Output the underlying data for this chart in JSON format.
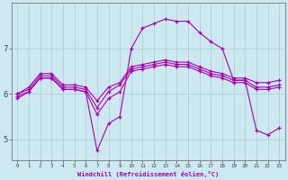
{
  "bg_color": "#cce8f0",
  "grid_color": "#aacccc",
  "line_color": "#aa00aa",
  "x_ticks": [
    0,
    1,
    2,
    3,
    4,
    5,
    6,
    7,
    8,
    9,
    10,
    11,
    12,
    13,
    14,
    15,
    16,
    17,
    18,
    19,
    20,
    21,
    22,
    23
  ],
  "ylim": [
    4.55,
    8.0
  ],
  "yticks": [
    5,
    6,
    7
  ],
  "xlabel": "Windchill (Refroidissement éolien,°C)",
  "line1_y": [
    5.95,
    6.05,
    6.35,
    6.35,
    6.1,
    6.1,
    6.05,
    4.75,
    5.35,
    5.5,
    7.0,
    7.45,
    7.55,
    7.65,
    7.6,
    7.6,
    7.35,
    7.15,
    7.0,
    6.3,
    6.3,
    5.2,
    5.1,
    5.25
  ],
  "line2_y": [
    6.0,
    6.15,
    6.45,
    6.45,
    6.2,
    6.2,
    6.15,
    5.85,
    6.15,
    6.25,
    6.6,
    6.65,
    6.7,
    6.75,
    6.7,
    6.7,
    6.6,
    6.5,
    6.45,
    6.35,
    6.35,
    6.25,
    6.25,
    6.3
  ],
  "line3_y": [
    6.0,
    6.1,
    6.4,
    6.4,
    6.15,
    6.15,
    6.1,
    5.7,
    6.05,
    6.2,
    6.55,
    6.6,
    6.65,
    6.7,
    6.65,
    6.65,
    6.55,
    6.45,
    6.4,
    6.3,
    6.3,
    6.15,
    6.15,
    6.2
  ],
  "line4_y": [
    5.9,
    6.05,
    6.35,
    6.35,
    6.1,
    6.1,
    6.05,
    5.55,
    5.9,
    6.05,
    6.5,
    6.55,
    6.6,
    6.65,
    6.6,
    6.6,
    6.5,
    6.4,
    6.35,
    6.25,
    6.25,
    6.1,
    6.1,
    6.15
  ]
}
